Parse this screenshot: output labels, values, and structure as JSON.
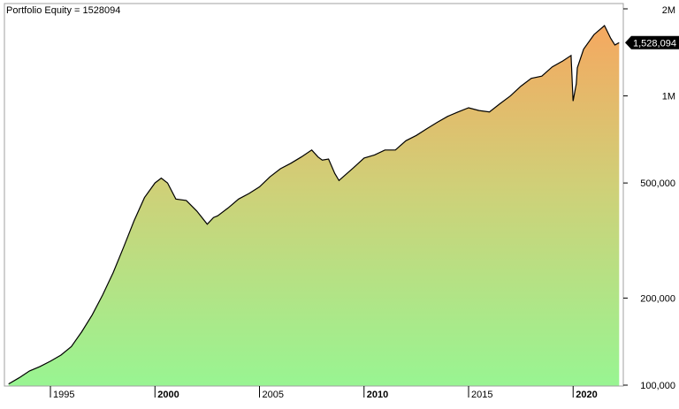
{
  "chart_data": {
    "type": "area",
    "title": "Portfolio Equity = 1528094",
    "y_scale": "log",
    "ylim": [
      100000,
      2000000
    ],
    "xlim": [
      1992.8,
      2022.4
    ],
    "y_ticks": [
      {
        "value": 2000000,
        "label": "2M"
      },
      {
        "value": 1000000,
        "label": "1M"
      },
      {
        "value": 500000,
        "label": "500,000"
      },
      {
        "value": 200000,
        "label": "200,000"
      },
      {
        "value": 100000,
        "label": "100,000"
      }
    ],
    "x_ticks": [
      {
        "value": 1995,
        "label": "1995",
        "major": false
      },
      {
        "value": 2000,
        "label": "2000",
        "major": true
      },
      {
        "value": 2005,
        "label": "2005",
        "major": false
      },
      {
        "value": 2010,
        "label": "2010",
        "major": true
      },
      {
        "value": 2015,
        "label": "2015",
        "major": false
      },
      {
        "value": 2020,
        "label": "2020",
        "major": true
      }
    ],
    "last_value_label": "1,528,094",
    "gradient": {
      "top": "#f5a860",
      "middle": "#cfd078",
      "bottom": "#98f592"
    },
    "line_color": "#000000",
    "series": [
      {
        "x": [
          1993.0,
          1993.5,
          1994.0,
          1994.5,
          1995.0,
          1995.5,
          1996.0,
          1996.5,
          1997.0,
          1997.5,
          1998.0,
          1998.5,
          1999.0,
          1999.5,
          2000.0,
          2000.3,
          2000.6,
          2001.0,
          2001.5,
          2002.0,
          2002.5,
          2002.8,
          2003.0,
          2003.5,
          2004.0,
          2004.5,
          2005.0,
          2005.5,
          2006.0,
          2006.5,
          2007.0,
          2007.5,
          2007.8,
          2008.0,
          2008.3,
          2008.6,
          2008.8,
          2009.0,
          2009.5,
          2010.0,
          2010.5,
          2011.0,
          2011.5,
          2012.0,
          2012.5,
          2013.0,
          2013.5,
          2014.0,
          2014.5,
          2015.0,
          2015.5,
          2016.0,
          2016.5,
          2017.0,
          2017.5,
          2018.0,
          2018.5,
          2019.0,
          2019.5,
          2019.9,
          2020.0,
          2020.15,
          2020.2,
          2020.5,
          2021.0,
          2021.5,
          2021.8,
          2022.0,
          2022.2
        ],
        "y": [
          101000,
          106000,
          112000,
          116000,
          121000,
          127000,
          136000,
          153000,
          175000,
          205000,
          245000,
          300000,
          370000,
          445000,
          500000,
          520000,
          500000,
          440000,
          435000,
          400000,
          360000,
          380000,
          385000,
          410000,
          440000,
          460000,
          485000,
          525000,
          560000,
          585000,
          615000,
          650000,
          615000,
          600000,
          605000,
          540000,
          510000,
          525000,
          565000,
          610000,
          625000,
          650000,
          650000,
          700000,
          730000,
          770000,
          810000,
          850000,
          880000,
          910000,
          890000,
          880000,
          940000,
          1000000,
          1080000,
          1150000,
          1170000,
          1260000,
          1320000,
          1380000,
          960000,
          1100000,
          1250000,
          1450000,
          1630000,
          1750000,
          1580000,
          1500000,
          1528094
        ]
      }
    ]
  }
}
